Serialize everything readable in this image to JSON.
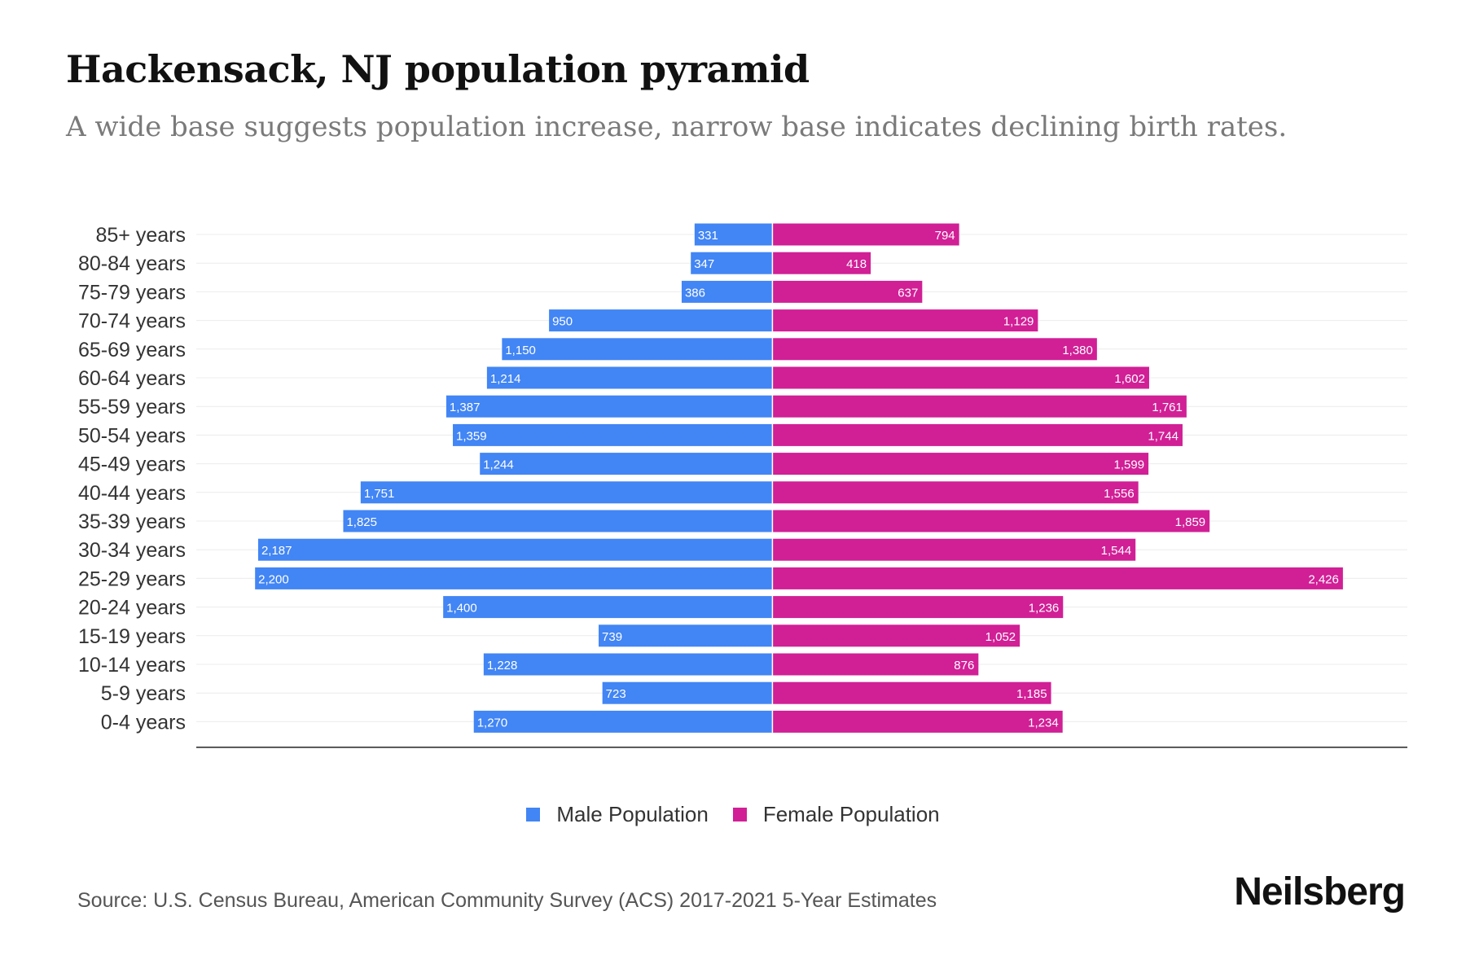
{
  "header": {
    "title": "Hackensack, NJ population pyramid",
    "subtitle": "A wide base suggests population increase, narrow base indicates declining birth rates."
  },
  "chart_data": {
    "type": "bar",
    "orientation": "horizontal-pyramid",
    "categories": [
      "85+ years",
      "80-84 years",
      "75-79 years",
      "70-74 years",
      "65-69 years",
      "60-64 years",
      "55-59 years",
      "50-54 years",
      "45-49 years",
      "40-44 years",
      "35-39 years",
      "30-34 years",
      "25-29 years",
      "20-24 years",
      "15-19 years",
      "10-14 years",
      "5-9 years",
      "0-4 years"
    ],
    "series": [
      {
        "name": "Male Population",
        "color": "#4285f4",
        "values": [
          331,
          347,
          386,
          950,
          1150,
          1214,
          1387,
          1359,
          1244,
          1751,
          1825,
          2187,
          2200,
          1400,
          739,
          1228,
          723,
          1270
        ],
        "labels": [
          "331",
          "347",
          "386",
          "950",
          "1,150",
          "1,214",
          "1,387",
          "1,359",
          "1,244",
          "1,751",
          "1,825",
          "2,187",
          "2,200",
          "1,400",
          "739",
          "1,228",
          "723",
          "1,270"
        ]
      },
      {
        "name": "Female Population",
        "color": "#d11f96",
        "values": [
          794,
          418,
          637,
          1129,
          1380,
          1602,
          1761,
          1744,
          1599,
          1556,
          1859,
          1544,
          2426,
          1236,
          1052,
          876,
          1185,
          1234
        ],
        "labels": [
          "794",
          "418",
          "637",
          "1,129",
          "1,380",
          "1,602",
          "1,761",
          "1,744",
          "1,599",
          "1,556",
          "1,859",
          "1,544",
          "2,426",
          "1,236",
          "1,052",
          "876",
          "1,185",
          "1,234"
        ]
      }
    ],
    "xlim": [
      -2450,
      2700
    ],
    "grid": true,
    "legend": "bottom-center"
  },
  "legend": {
    "male_label": "Male Population",
    "female_label": "Female Population",
    "male_color": "#4285f4",
    "female_color": "#d11f96"
  },
  "footer": {
    "source": "Source: U.S. Census Bureau, American Community Survey (ACS) 2017-2021 5-Year Estimates",
    "brand": "Neilsberg"
  }
}
